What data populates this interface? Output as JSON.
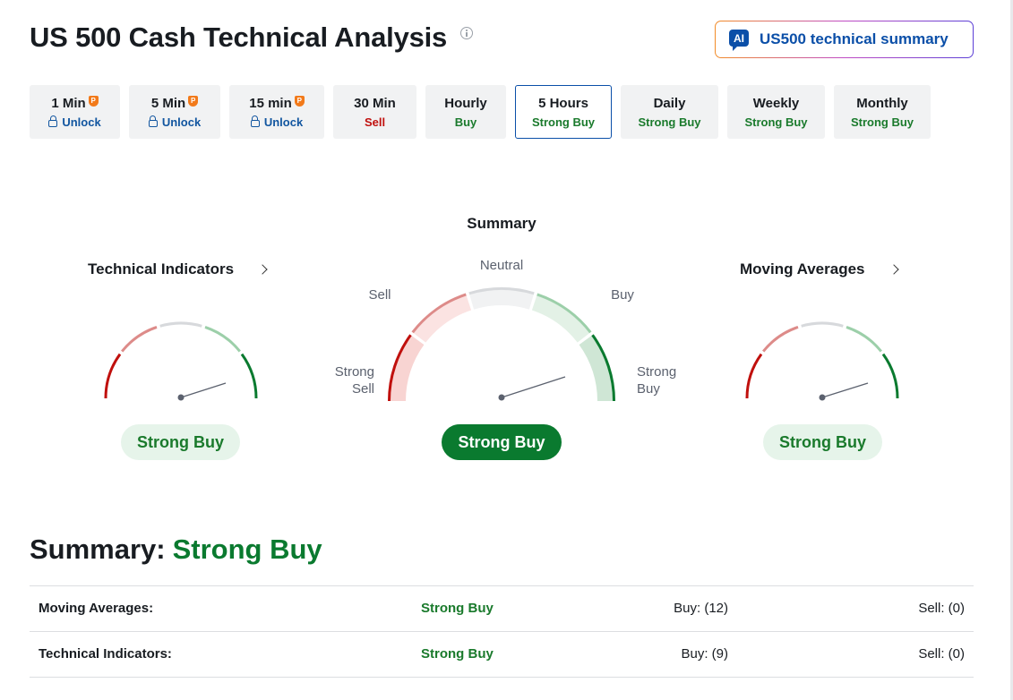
{
  "page": {
    "title": "US 500 Cash Technical Analysis",
    "ai_button_label": "US500 technical summary",
    "ai_badge": "AI"
  },
  "timeframes": [
    {
      "label": "1 Min",
      "sub": "Unlock",
      "locked": true,
      "active": false
    },
    {
      "label": "5 Min",
      "sub": "Unlock",
      "locked": true,
      "active": false
    },
    {
      "label": "15 min",
      "sub": "Unlock",
      "locked": true,
      "active": false
    },
    {
      "label": "30 Min",
      "sub": "Sell",
      "locked": false,
      "active": false
    },
    {
      "label": "Hourly",
      "sub": "Buy",
      "locked": false,
      "active": false
    },
    {
      "label": "5 Hours",
      "sub": "Strong Buy",
      "locked": false,
      "active": true
    },
    {
      "label": "Daily",
      "sub": "Strong Buy",
      "locked": false,
      "active": false
    },
    {
      "label": "Weekly",
      "sub": "Strong Buy",
      "locked": false,
      "active": false
    },
    {
      "label": "Monthly",
      "sub": "Strong Buy",
      "locked": false,
      "active": false
    }
  ],
  "gauges": {
    "summary": {
      "title": "Summary",
      "labels": {
        "strong_sell": "Strong\nSell",
        "sell": "Sell",
        "neutral": "Neutral",
        "buy": "Buy",
        "strong_buy": "Strong\nBuy"
      },
      "result": "Strong Buy"
    },
    "technical": {
      "title": "Technical Indicators",
      "result": "Strong Buy"
    },
    "moving": {
      "title": "Moving Averages",
      "result": "Strong Buy"
    }
  },
  "summary": {
    "label": "Summary:",
    "value": "Strong Buy",
    "rows": [
      {
        "name": "Moving Averages:",
        "value": "Strong Buy",
        "buy": "Buy: (12)",
        "sell": "Sell: (0)"
      },
      {
        "name": "Technical Indicators:",
        "value": "Strong Buy",
        "buy": "Buy: (9)",
        "sell": "Sell: (0)"
      }
    ]
  },
  "colors": {
    "strong_buy": "#0a7a2f",
    "strong_sell": "#c0100d",
    "link_blue": "#0b4fa8",
    "pro_orange": "#f27a1a"
  },
  "icons": [
    "info-icon",
    "ai-icon",
    "pro-icon",
    "lock-icon",
    "chevron-right-icon"
  ]
}
